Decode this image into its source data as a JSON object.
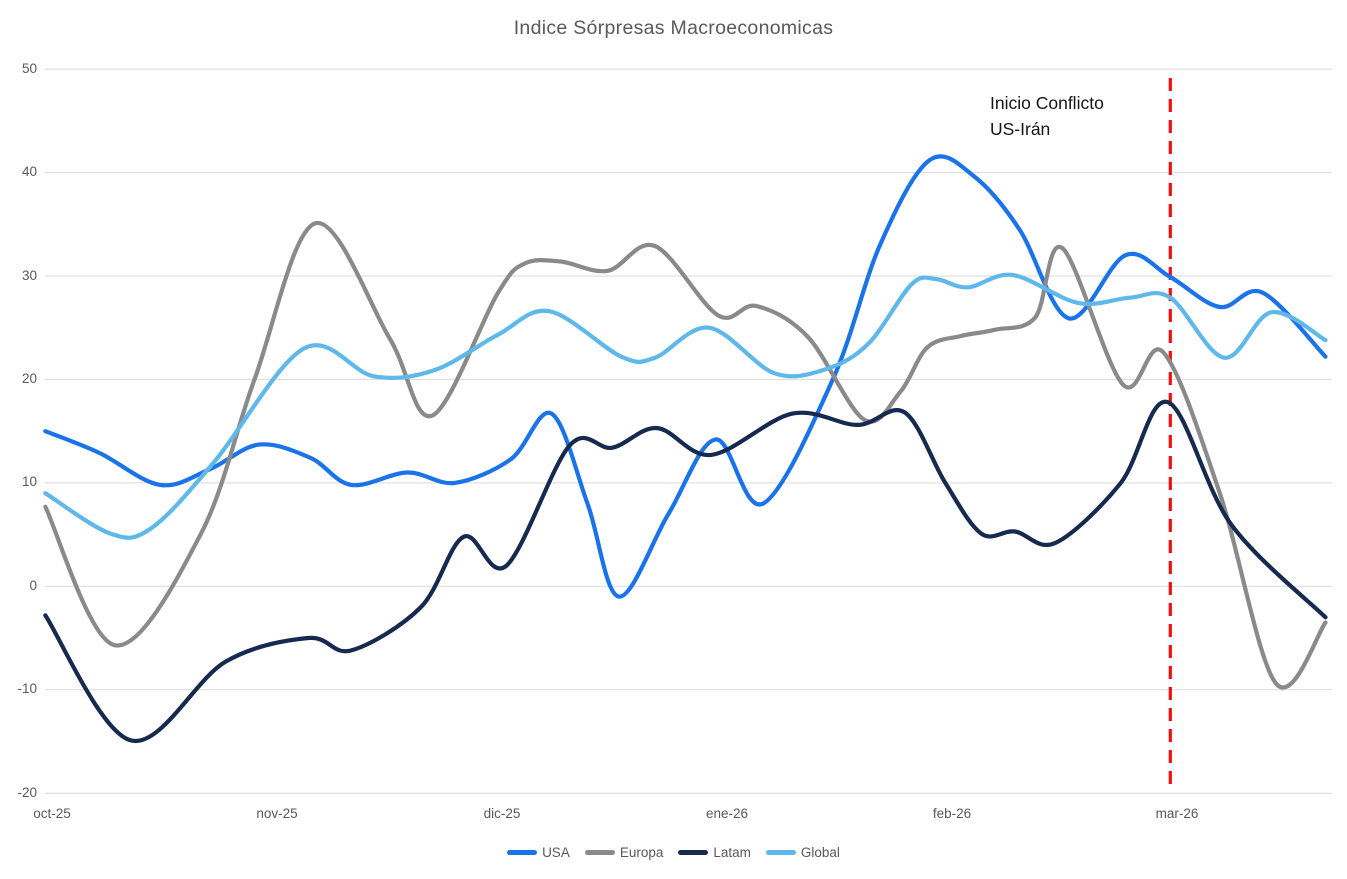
{
  "title": "Indice Sórpresas Macroeconomicas",
  "annotation": {
    "line1": "Inicio Conflicto",
    "line2": "US-Irán"
  },
  "colors": {
    "usa": "#1A73E8",
    "europa": "#8A8A8A",
    "latam": "#16294F",
    "global": "#5FB8EA",
    "event_line": "#F20F0F",
    "grid": "#D9D9D9",
    "axis_text": "#595959",
    "title_text": "#595959",
    "annotation_text": "#151515"
  },
  "chart_data": {
    "type": "line",
    "title": "Indice Sórpresas Macroeconomicas",
    "grid": "horizontal",
    "legend_position": "bottom-center",
    "x_axis": {
      "unit": "months-from-oct-25",
      "tick_labels": [
        "oct-25",
        "nov-25",
        "dic-25",
        "ene-26",
        "feb-26",
        "mar-26"
      ],
      "tick_positions": [
        0,
        1,
        2,
        3,
        4,
        5
      ],
      "range": [
        -0.03,
        5.66
      ]
    },
    "y_axis": {
      "min": -20,
      "max": 50,
      "ticks": [
        50,
        40,
        30,
        20,
        10,
        0,
        -10,
        -20
      ]
    },
    "event_line": {
      "x": 4.97,
      "style": "dashed",
      "color": "#F20F0F",
      "label": "Inicio Conflicto US-Irán"
    },
    "series": [
      {
        "name": "USA",
        "color": "#1A73E8",
        "points": [
          [
            -0.03,
            15.0
          ],
          [
            0.21,
            12.9
          ],
          [
            0.48,
            9.8
          ],
          [
            0.7,
            11.3
          ],
          [
            0.92,
            13.7
          ],
          [
            1.15,
            12.4
          ],
          [
            1.33,
            9.8
          ],
          [
            1.58,
            11.0
          ],
          [
            1.79,
            10.0
          ],
          [
            2.04,
            12.3
          ],
          [
            2.22,
            16.7
          ],
          [
            2.38,
            8.0
          ],
          [
            2.52,
            -1.0
          ],
          [
            2.74,
            7.0
          ],
          [
            2.95,
            14.2
          ],
          [
            3.16,
            8.0
          ],
          [
            3.47,
            20.0
          ],
          [
            3.68,
            33.0
          ],
          [
            3.9,
            41.2
          ],
          [
            4.1,
            39.6
          ],
          [
            4.3,
            34.5
          ],
          [
            4.52,
            25.9
          ],
          [
            4.77,
            32.0
          ],
          [
            4.97,
            29.9
          ],
          [
            5.19,
            27.0
          ],
          [
            5.38,
            28.4
          ],
          [
            5.66,
            22.2
          ]
        ]
      },
      {
        "name": "Europa",
        "color": "#8A8A8A",
        "points": [
          [
            -0.03,
            7.7
          ],
          [
            0.28,
            -5.7
          ],
          [
            0.66,
            5.0
          ],
          [
            0.9,
            20.0
          ],
          [
            1.17,
            35.1
          ],
          [
            1.5,
            24.0
          ],
          [
            1.69,
            16.5
          ],
          [
            1.98,
            28.3
          ],
          [
            2.1,
            31.2
          ],
          [
            2.26,
            31.4
          ],
          [
            2.47,
            30.5
          ],
          [
            2.68,
            32.9
          ],
          [
            2.96,
            26.2
          ],
          [
            3.13,
            27.1
          ],
          [
            3.36,
            24.1
          ],
          [
            3.61,
            16.1
          ],
          [
            3.77,
            18.8
          ],
          [
            3.89,
            23.1
          ],
          [
            4.04,
            24.2
          ],
          [
            4.19,
            24.8
          ],
          [
            4.37,
            26.0
          ],
          [
            4.49,
            32.7
          ],
          [
            4.76,
            19.5
          ],
          [
            4.94,
            22.6
          ],
          [
            5.19,
            9.0
          ],
          [
            5.44,
            -9.4
          ],
          [
            5.66,
            -3.5
          ]
        ]
      },
      {
        "name": "Latam",
        "color": "#16294F",
        "points": [
          [
            -0.03,
            -2.8
          ],
          [
            0.35,
            -14.9
          ],
          [
            0.77,
            -7.3
          ],
          [
            1.14,
            -5.0
          ],
          [
            1.33,
            -6.2
          ],
          [
            1.64,
            -2.0
          ],
          [
            1.83,
            4.8
          ],
          [
            2.02,
            2.0
          ],
          [
            2.3,
            13.6
          ],
          [
            2.49,
            13.4
          ],
          [
            2.69,
            15.3
          ],
          [
            2.93,
            12.7
          ],
          [
            3.29,
            16.7
          ],
          [
            3.58,
            15.6
          ],
          [
            3.79,
            16.8
          ],
          [
            3.97,
            10.0
          ],
          [
            4.13,
            5.1
          ],
          [
            4.28,
            5.3
          ],
          [
            4.46,
            4.2
          ],
          [
            4.75,
            10.0
          ],
          [
            4.96,
            17.8
          ],
          [
            5.24,
            6.0
          ],
          [
            5.66,
            -3.0
          ]
        ]
      },
      {
        "name": "Global",
        "color": "#5FB8EA",
        "points": [
          [
            -0.03,
            9.0
          ],
          [
            0.26,
            5.1
          ],
          [
            0.44,
            5.6
          ],
          [
            0.72,
            12.0
          ],
          [
            1.12,
            23.0
          ],
          [
            1.43,
            20.3
          ],
          [
            1.7,
            20.9
          ],
          [
            1.98,
            24.3
          ],
          [
            2.21,
            26.6
          ],
          [
            2.53,
            22.2
          ],
          [
            2.68,
            22.1
          ],
          [
            2.92,
            25.0
          ],
          [
            3.21,
            20.6
          ],
          [
            3.44,
            21.0
          ],
          [
            3.63,
            23.5
          ],
          [
            3.82,
            29.2
          ],
          [
            3.93,
            29.7
          ],
          [
            4.07,
            28.9
          ],
          [
            4.27,
            30.1
          ],
          [
            4.56,
            27.4
          ],
          [
            4.79,
            27.9
          ],
          [
            4.97,
            27.9
          ],
          [
            5.21,
            22.1
          ],
          [
            5.42,
            26.5
          ],
          [
            5.66,
            23.8
          ]
        ]
      }
    ]
  }
}
